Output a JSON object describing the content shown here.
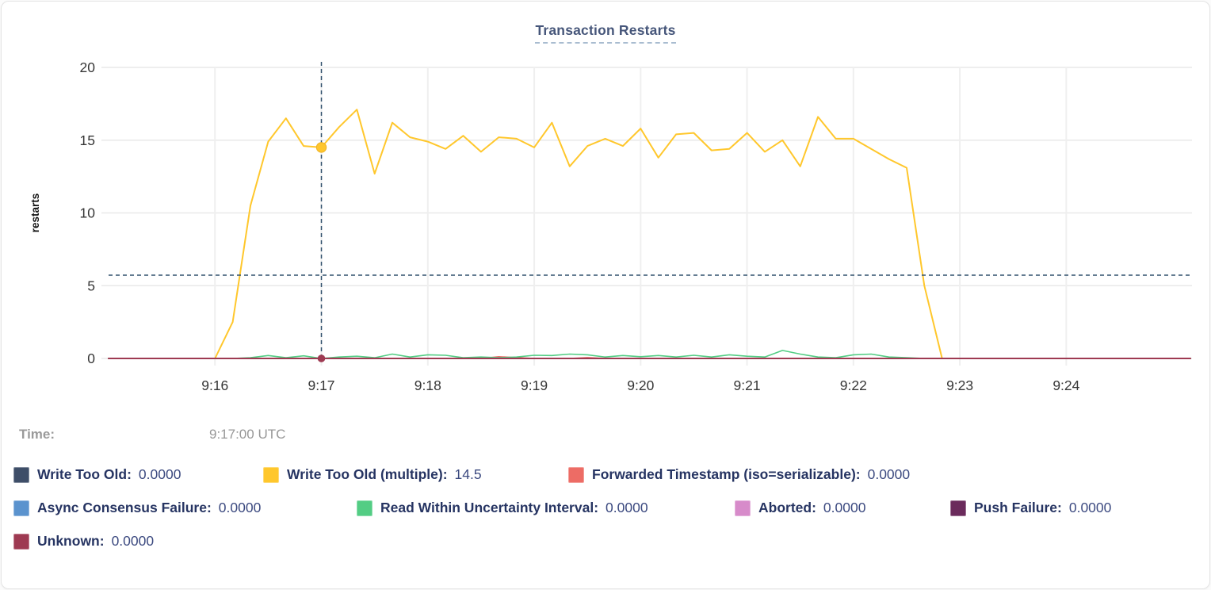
{
  "title": "Transaction Restarts",
  "time_row": {
    "label": "Time:",
    "value": "9:17:00 UTC"
  },
  "colors": {
    "accent_navy": "#46567a",
    "cursor": "#31516d",
    "grid": "#e9e9e9",
    "axis_text": "#363636"
  },
  "chart_data": {
    "type": "line",
    "title": "Transaction Restarts",
    "xlabel": "",
    "ylabel": "restarts",
    "ylim": [
      0,
      20
    ],
    "y_ticks": [
      0,
      5,
      10,
      15,
      20
    ],
    "x_domain_seconds_from_915": [
      0,
      610
    ],
    "x_step_seconds": 10,
    "x_ticks": [
      {
        "t": 60,
        "label": "9:16"
      },
      {
        "t": 120,
        "label": "9:17"
      },
      {
        "t": 180,
        "label": "9:18"
      },
      {
        "t": 240,
        "label": "9:19"
      },
      {
        "t": 300,
        "label": "9:20"
      },
      {
        "t": 360,
        "label": "9:21"
      },
      {
        "t": 420,
        "label": "9:22"
      },
      {
        "t": 480,
        "label": "9:23"
      },
      {
        "t": 540,
        "label": "9:24"
      }
    ],
    "grid": true,
    "legend_position": "bottom",
    "cursor": {
      "t": 120,
      "hline_value": 5.72,
      "highlight_series": "Write Too Old (multiple)",
      "highlight_value": 14.5
    },
    "series": [
      {
        "name": "Write Too Old",
        "color": "#3e4e68",
        "width": 2,
        "values": [
          0,
          0,
          0,
          0,
          0,
          0,
          0,
          0,
          0,
          0,
          0,
          0,
          0,
          0,
          0,
          0,
          0,
          0,
          0,
          0,
          0,
          0,
          0,
          0,
          0,
          0,
          0,
          0,
          0,
          0,
          0,
          0,
          0,
          0,
          0,
          0,
          0,
          0,
          0,
          0,
          0,
          0,
          0,
          0,
          0,
          0,
          0,
          0,
          0,
          0,
          0,
          0,
          0,
          0,
          0,
          0,
          0,
          0,
          0,
          0,
          0,
          0
        ]
      },
      {
        "name": "Write Too Old (multiple)",
        "color": "#ffc72c",
        "width": 2,
        "values": [
          0,
          0,
          0,
          0,
          0,
          0,
          0,
          2.5,
          10.5,
          14.9,
          16.5,
          14.6,
          14.5,
          15.9,
          17.1,
          12.7,
          16.2,
          15.2,
          14.9,
          14.4,
          15.3,
          14.2,
          15.2,
          15.1,
          14.5,
          16.2,
          13.2,
          14.6,
          15.1,
          14.6,
          15.8,
          13.8,
          15.4,
          15.5,
          14.3,
          14.4,
          15.5,
          14.2,
          15.0,
          13.2,
          16.6,
          15.1,
          15.1,
          14.4,
          13.7,
          13.1,
          5.0,
          0,
          0,
          0,
          0,
          0,
          0,
          0,
          0,
          0,
          0,
          0,
          0,
          0,
          0,
          0
        ]
      },
      {
        "name": "Forwarded Timestamp (iso=serializable)",
        "color": "#ed6c65",
        "width": 1.6,
        "values": [
          0,
          0,
          0,
          0,
          0,
          0,
          0,
          0,
          0,
          0,
          0,
          0,
          0,
          0,
          0,
          0,
          0,
          0,
          0,
          0,
          0,
          0,
          0.12,
          0.06,
          0,
          0,
          0,
          0.06,
          0,
          0,
          0,
          0,
          0,
          0,
          0,
          0,
          0,
          0,
          0,
          0,
          0,
          0,
          0,
          0,
          0,
          0,
          0,
          0,
          0,
          0,
          0,
          0,
          0,
          0,
          0,
          0,
          0,
          0,
          0,
          0,
          0,
          0
        ]
      },
      {
        "name": "Async Consensus Failure",
        "color": "#5b93ce",
        "width": 1.6,
        "values": [
          0,
          0,
          0,
          0,
          0,
          0,
          0,
          0,
          0,
          0,
          0,
          0,
          0,
          0,
          0,
          0,
          0,
          0,
          0,
          0,
          0,
          0,
          0,
          0,
          0,
          0,
          0,
          0,
          0,
          0,
          0,
          0,
          0,
          0,
          0,
          0,
          0,
          0,
          0,
          0,
          0,
          0,
          0,
          0,
          0,
          0,
          0,
          0,
          0,
          0,
          0,
          0,
          0,
          0,
          0,
          0,
          0,
          0,
          0,
          0,
          0,
          0
        ]
      },
      {
        "name": "Read Within Uncertainty Interval",
        "color": "#53cd84",
        "width": 1.6,
        "values": [
          0,
          0,
          0,
          0,
          0,
          0,
          0,
          0,
          0.05,
          0.2,
          0.05,
          0.18,
          0,
          0.1,
          0.15,
          0.05,
          0.3,
          0.1,
          0.25,
          0.22,
          0.05,
          0.1,
          0.05,
          0.1,
          0.22,
          0.2,
          0.3,
          0.25,
          0.1,
          0.2,
          0.12,
          0.2,
          0.1,
          0.22,
          0.1,
          0.25,
          0.15,
          0.1,
          0.55,
          0.3,
          0.1,
          0.05,
          0.25,
          0.3,
          0.1,
          0.05,
          0,
          0,
          0,
          0,
          0,
          0,
          0,
          0,
          0,
          0,
          0,
          0,
          0,
          0,
          0,
          0
        ]
      },
      {
        "name": "Aborted",
        "color": "#d78bca",
        "width": 1.6,
        "values": [
          0,
          0,
          0,
          0,
          0,
          0,
          0,
          0,
          0,
          0,
          0,
          0,
          0,
          0,
          0,
          0,
          0,
          0,
          0,
          0,
          0,
          0,
          0,
          0,
          0,
          0,
          0,
          0,
          0,
          0,
          0,
          0,
          0,
          0,
          0,
          0,
          0,
          0,
          0,
          0,
          0,
          0,
          0,
          0,
          0,
          0,
          0,
          0,
          0,
          0,
          0,
          0,
          0,
          0,
          0,
          0,
          0,
          0,
          0,
          0,
          0,
          0
        ]
      },
      {
        "name": "Push Failure",
        "color": "#6b2b5c",
        "width": 1.6,
        "values": [
          0,
          0,
          0,
          0,
          0,
          0,
          0,
          0,
          0,
          0,
          0,
          0,
          0,
          0,
          0,
          0,
          0,
          0,
          0,
          0,
          0,
          0,
          0,
          0,
          0,
          0,
          0,
          0,
          0,
          0,
          0,
          0,
          0,
          0,
          0,
          0,
          0,
          0,
          0,
          0,
          0,
          0,
          0,
          0,
          0,
          0,
          0,
          0,
          0,
          0,
          0,
          0,
          0,
          0,
          0,
          0,
          0,
          0,
          0,
          0,
          0,
          0
        ]
      },
      {
        "name": "Unknown",
        "color": "#9e3a52",
        "width": 2,
        "values": [
          0,
          0,
          0,
          0,
          0,
          0,
          0,
          0,
          0,
          0,
          0,
          0,
          0,
          0,
          0,
          0,
          0,
          0,
          0,
          0,
          0,
          0,
          0,
          0,
          0,
          0,
          0,
          0,
          0,
          0,
          0,
          0,
          0,
          0,
          0,
          0,
          0,
          0,
          0,
          0,
          0,
          0,
          0,
          0,
          0,
          0,
          0,
          0,
          0,
          0,
          0,
          0,
          0,
          0,
          0,
          0,
          0,
          0,
          0,
          0,
          0,
          0
        ]
      }
    ]
  },
  "legend": {
    "rows": [
      [
        {
          "label": "Write Too Old:",
          "value": "0.0000",
          "color": "#3e4e68"
        },
        {
          "label": "Write Too Old (multiple):",
          "value": "14.5",
          "color": "#ffc72c"
        },
        {
          "label": "Forwarded Timestamp (iso=serializable):",
          "value": "0.0000",
          "color": "#ed6c65"
        }
      ],
      [
        {
          "label": "Async Consensus Failure:",
          "value": "0.0000",
          "color": "#5b93ce"
        },
        {
          "label": "Read Within Uncertainty Interval:",
          "value": "0.0000",
          "color": "#53cd84"
        },
        {
          "label": "Aborted:",
          "value": "0.0000",
          "color": "#d78bca"
        },
        {
          "label": "Push Failure:",
          "value": "0.0000",
          "color": "#6b2b5c"
        }
      ],
      [
        {
          "label": "Unknown:",
          "value": "0.0000",
          "color": "#9e3a52"
        }
      ]
    ]
  }
}
